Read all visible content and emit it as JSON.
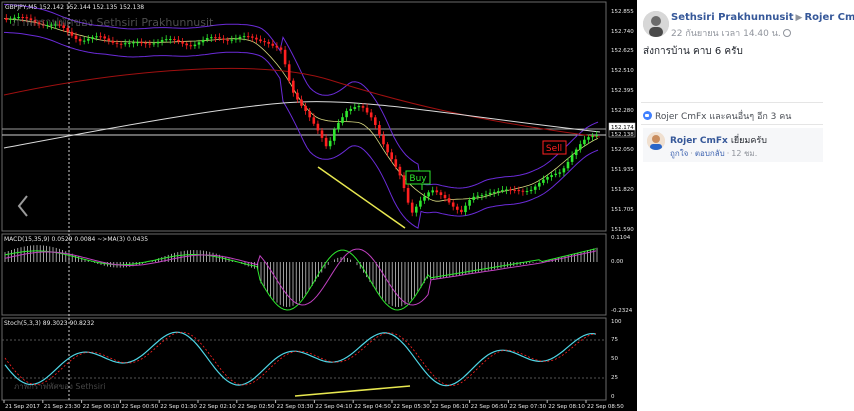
{
  "chart": {
    "main_header": "GBPJPY,M5  152.142 152.144 152.135 152.138",
    "watermark": "ภาพกราฟพัศของ Sethsiri Prakhunnusit",
    "price_ticks": [
      "152.855",
      "152.740",
      "152.625",
      "152.510",
      "152.395",
      "152.280",
      "152.174",
      "152.138",
      "152.050",
      "151.935",
      "151.820",
      "151.705",
      "151.590"
    ],
    "buy_label": "Buy",
    "sell_label": "Sell",
    "macd_header": "MACD(15,35,9) 0.0529 0.0084 ~>MA(3) 0.0435",
    "macd_ticks": [
      "0.1104",
      "0.00",
      "-0.2324"
    ],
    "stoch_header": "Stoch(5,3,3) 89.3023 90.8232",
    "stoch_ticks": [
      "100",
      "75",
      "50",
      "25",
      "0"
    ],
    "stoch_watermark": "ภาพกราฟพัศของ Sethsiri",
    "time_labels": [
      "21 Sep 2017",
      "21 Sep 23:30",
      "22 Sep 00:10",
      "22 Sep 00:50",
      "22 Sep 01:30",
      "22 Sep 02:10",
      "22 Sep 02:50",
      "22 Sep 03:30",
      "22 Sep 04:10",
      "22 Sep 04:50",
      "22 Sep 05:30",
      "22 Sep 06:10",
      "22 Sep 06:50",
      "22 Sep 07:30",
      "22 Sep 08:10",
      "22 Sep 08:50"
    ],
    "colors": {
      "bull": "#2ee82e",
      "bear": "#ff2020",
      "bb": "#6a2bd8",
      "ma_red": "#a01010",
      "ma_white": "#dcdcdc",
      "ma_yellow": "#d8d880",
      "trend": "#e8e850",
      "stoch_main": "#4fd6e6",
      "stoch_signal": "#ff2020",
      "macd_signal": "#c040c0",
      "macd_main": "#2ee82e"
    }
  },
  "post": {
    "author": "Sethsiri Prakhunnusit",
    "target": "Rojer CmFx",
    "meta": "22 กันยายน เวลา 14.40 น.",
    "text": "ส่งการบ้าน คาบ 6 ครับ",
    "likes": "Rojer CmFx และคนอื่นๆ อีก 3 คน",
    "comment": {
      "author": "Rojer CmFx",
      "text": "เยี่ยมครับ",
      "like_label": "ถูกใจ",
      "reply_label": "ตอบกลับ",
      "time": "12 ชม."
    }
  }
}
